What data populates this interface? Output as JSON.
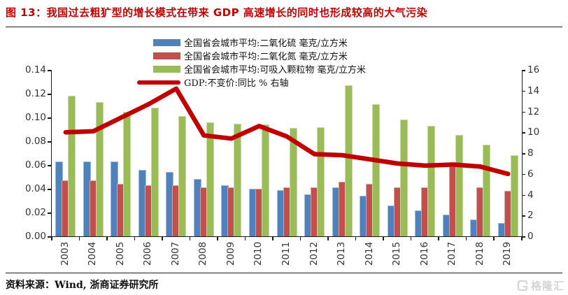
{
  "figure": {
    "title": "图 13：我国过去粗犷型的增长模式在带来 GDP 高速增长的同时也形成较高的大气污染",
    "source": "资料来源：Wind, 浙商证券研究所",
    "watermark": "格隆汇"
  },
  "colors": {
    "title": "#c00000",
    "so2_bar": "#4f81bd",
    "no2_bar": "#c0504d",
    "pm10_bar": "#9bbb59",
    "gdp_line": "#c00000",
    "axis": "#1a1a1a",
    "axis_text": "#333333",
    "watermark": "#d4d4d4"
  },
  "chart_data": {
    "type": "bar",
    "subtype": "grouped bars with overlaid line (dual axis)",
    "title": "图 13：我国过去粗犷型的增长模式在带来 GDP 高速增长的同时也形成较高的大气污染",
    "categories": [
      "2003",
      "2004",
      "2005",
      "2006",
      "2007",
      "2008",
      "2009",
      "2010",
      "2011",
      "2012",
      "2013",
      "2014",
      "2015",
      "2016",
      "2017",
      "2018",
      "2019"
    ],
    "series": [
      {
        "name": "全国省会城市平均:二氧化硫 毫克/立方米",
        "type": "bar",
        "axis": "left",
        "color": "#4f81bd",
        "values": [
          0.063,
          0.063,
          0.063,
          0.056,
          0.054,
          0.048,
          0.043,
          0.04,
          0.039,
          0.035,
          0.041,
          0.034,
          0.026,
          0.022,
          0.018,
          0.014,
          0.011
        ]
      },
      {
        "name": "全国省会城市平均:二氧化氮 毫克/立方米",
        "type": "bar",
        "axis": "left",
        "color": "#c0504d",
        "values": [
          0.047,
          0.047,
          0.044,
          0.043,
          0.043,
          0.041,
          0.041,
          0.04,
          0.041,
          0.041,
          0.046,
          0.044,
          0.041,
          0.041,
          0.059,
          0.041,
          0.038
        ]
      },
      {
        "name": "全国省会城市平均:可吸入颗粒物 毫克/立方米",
        "type": "bar",
        "axis": "left",
        "color": "#9bbb59",
        "values": [
          0.118,
          0.113,
          0.105,
          0.108,
          0.101,
          0.096,
          0.095,
          0.094,
          0.091,
          0.092,
          0.127,
          0.111,
          0.098,
          0.093,
          0.085,
          0.077,
          0.068
        ]
      },
      {
        "name": "GDP:不变价:同比 % 右轴",
        "type": "line",
        "axis": "right",
        "color": "#c00000",
        "values": [
          10.0,
          10.1,
          11.4,
          12.7,
          14.2,
          9.7,
          9.4,
          10.6,
          9.6,
          7.9,
          7.8,
          7.4,
          7.0,
          6.8,
          6.9,
          6.7,
          6.0
        ]
      }
    ],
    "left_axis": {
      "min": 0,
      "max": 0.14,
      "step": 0.02,
      "ticks": [
        "0.00",
        "0.02",
        "0.04",
        "0.06",
        "0.08",
        "0.10",
        "0.12",
        "0.14"
      ]
    },
    "right_axis": {
      "min": 0,
      "max": 16,
      "step": 2,
      "ticks": [
        "0",
        "2",
        "4",
        "6",
        "8",
        "10",
        "12",
        "14",
        "16"
      ]
    },
    "legend_position": "top-center",
    "grid": false,
    "x_tick_label_rotation": 90
  }
}
